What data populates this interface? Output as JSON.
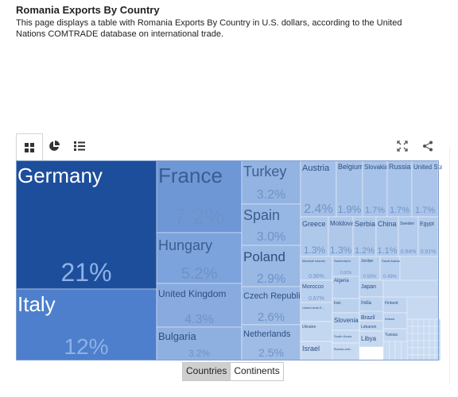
{
  "header": {
    "title": "Romania Exports By Country",
    "description": "This page displays a table with Romania Exports By Country in U.S. dollars, according to the United Nations COMTRADE database on international trade."
  },
  "toolbar": {
    "views": [
      {
        "name": "treemap",
        "icon": "grid-icon",
        "active": true
      },
      {
        "name": "pie",
        "icon": "pie-chart-icon",
        "active": false
      },
      {
        "name": "list",
        "icon": "list-icon",
        "active": false
      }
    ],
    "right_icons": [
      "fullscreen-icon",
      "share-icon"
    ]
  },
  "chart_data": {
    "type": "treemap",
    "unit": "%",
    "items": [
      {
        "name": "Germany",
        "share": "21%",
        "color": "#1d4e9c"
      },
      {
        "name": "Italy",
        "share": "12%",
        "color": "#4d7fcc"
      },
      {
        "name": "France",
        "share": "7.2%",
        "color": "#6e97d6"
      },
      {
        "name": "Hungary",
        "share": "5.2%",
        "color": "#7da3dc"
      },
      {
        "name": "United Kingdom",
        "share": "4.3%",
        "color": "#88aadf"
      },
      {
        "name": "Bulgaria",
        "share": "3.2%",
        "color": "#8eb0e1"
      },
      {
        "name": "Turkey",
        "share": "3.2%",
        "color": "#93b3e2"
      },
      {
        "name": "Spain",
        "share": "3.0%",
        "color": "#96b6e3"
      },
      {
        "name": "Poland",
        "share": "2.9%",
        "color": "#99b8e4"
      },
      {
        "name": "Czech Republic",
        "share": "2.6%",
        "color": "#9cbae5"
      },
      {
        "name": "Netherlands",
        "share": "2.5%",
        "color": "#9ebce6"
      },
      {
        "name": "Austria",
        "share": "2.4%",
        "color": "#a4c0e8"
      },
      {
        "name": "Belgium",
        "share": "1.9%",
        "color": "#a6c2e8"
      },
      {
        "name": "Slovakia",
        "share": "1.7%",
        "color": "#a8c3e9"
      },
      {
        "name": "Russia",
        "share": "1.7%",
        "color": "#a9c4e9"
      },
      {
        "name": "United States",
        "share": "1.7%",
        "color": "#aac5e9"
      },
      {
        "name": "Greece",
        "share": "1.3%",
        "color": "#aec8ea"
      },
      {
        "name": "Moldova",
        "share": "1.3%",
        "color": "#afc8ea"
      },
      {
        "name": "Serbia",
        "share": "1.2%",
        "color": "#b0c9eb"
      },
      {
        "name": "China",
        "share": "1.1%",
        "color": "#b1caeb"
      },
      {
        "name": "Sweden",
        "share": "0.94%",
        "color": "#b3cbec"
      },
      {
        "name": "Egypt",
        "share": "0.91%",
        "color": "#b4ccec"
      },
      {
        "name": "Marshall Islands",
        "share": "0.90%",
        "color": "#b5cdec"
      },
      {
        "name": "Switzerland",
        "share": "0.82%",
        "color": "#b6ceed"
      },
      {
        "name": "Jordan",
        "share": "0.50%",
        "color": "#b7cfed"
      },
      {
        "name": "Saudi Arabia",
        "share": "0.49%",
        "color": "#b8cfed"
      },
      {
        "name": "Algeria",
        "share": "",
        "color": "#b8cfee"
      },
      {
        "name": "Morocco",
        "share": "0.67%",
        "color": "#b9d0ee"
      },
      {
        "name": "Iran",
        "share": "",
        "color": "#bad1ee"
      },
      {
        "name": "Japan",
        "share": "",
        "color": "#bbd1ee"
      },
      {
        "name": "India",
        "share": "",
        "color": "#bcd2ef"
      },
      {
        "name": "United Arab Emirates",
        "share": "",
        "color": "#bdd3ef"
      },
      {
        "name": "Brazil",
        "share": "",
        "color": "#bed3ef"
      },
      {
        "name": "Finland",
        "share": "",
        "color": "#bfd4ef"
      },
      {
        "name": "Slovenia",
        "share": "",
        "color": "#c0d5f0"
      },
      {
        "name": "Ireland",
        "share": "",
        "color": "#c1d5f0"
      },
      {
        "name": "Lebanon",
        "share": "",
        "color": "#c2d6f0"
      },
      {
        "name": "Ukraine",
        "share": "",
        "color": "#c3d7f0"
      },
      {
        "name": "South Korea",
        "share": "",
        "color": "#c4d7f1"
      },
      {
        "name": "Tunisia",
        "share": "",
        "color": "#c5d8f1"
      },
      {
        "name": "Libya",
        "share": "",
        "color": "#c6d9f1"
      },
      {
        "name": "Israel",
        "share": "",
        "color": "#c7d9f1"
      },
      {
        "name": "Bosnia and Herzegovina",
        "share": "",
        "color": "#c8daf2"
      }
    ]
  },
  "footer": {
    "buttons": [
      {
        "label": "Countries",
        "active": true
      },
      {
        "label": "Continents",
        "active": false
      }
    ]
  }
}
